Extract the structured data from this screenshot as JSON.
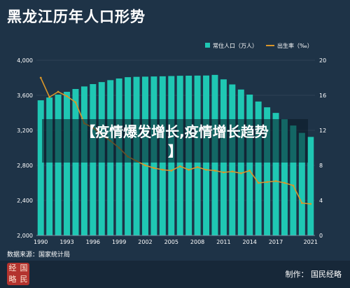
{
  "header": {
    "title": "黑龙江历年人口形势"
  },
  "overlay": {
    "headline_line1": "【疫情爆发增长,疫情增长趋势",
    "headline_line2": "】"
  },
  "footer": {
    "source": "数据来源：国家统计局",
    "credit": "制作：  国民经略",
    "logo_chars": [
      "经",
      "国",
      "略",
      "民"
    ]
  },
  "colors": {
    "background": "#1e3347",
    "bar": "#1fc7b3",
    "line": "#d9962a",
    "grid": "#3c5266"
  },
  "chart_data": {
    "type": "bar+line",
    "x": [
      1990,
      1991,
      1992,
      1993,
      1994,
      1995,
      1996,
      1997,
      1998,
      1999,
      2000,
      2001,
      2002,
      2003,
      2004,
      2005,
      2006,
      2007,
      2008,
      2009,
      2010,
      2011,
      2012,
      2013,
      2014,
      2015,
      2016,
      2017,
      2018,
      2019,
      2020,
      2021
    ],
    "x_ticks": [
      1990,
      1993,
      1996,
      1999,
      2002,
      2005,
      2008,
      2011,
      2014,
      2017,
      2021
    ],
    "series": [
      {
        "name": "常住人口（万人）",
        "type": "bar",
        "axis": "left",
        "values": [
          3543,
          3575,
          3608,
          3640,
          3672,
          3701,
          3728,
          3751,
          3773,
          3792,
          3807,
          3811,
          3813,
          3815,
          3817,
          3820,
          3823,
          3824,
          3825,
          3826,
          3833,
          3782,
          3724,
          3666,
          3608,
          3529,
          3463,
          3399,
          3327,
          3255,
          3171,
          3125
        ]
      },
      {
        "name": "出生率（‰）",
        "type": "line",
        "axis": "right",
        "values": [
          18.0,
          15.8,
          16.4,
          15.9,
          15.2,
          12.8,
          12.3,
          11.5,
          10.8,
          10.0,
          9.0,
          8.5,
          8.0,
          7.7,
          7.5,
          7.4,
          7.9,
          7.5,
          7.8,
          7.5,
          7.4,
          7.2,
          7.3,
          7.1,
          7.4,
          6.0,
          6.1,
          6.2,
          6.0,
          5.7,
          3.7,
          3.6
        ]
      }
    ],
    "y_left": {
      "ticks": [
        "2,000",
        "2,400",
        "2,800",
        "3,200",
        "3,600",
        "4,000"
      ],
      "range": [
        2000,
        4000
      ]
    },
    "y_right": {
      "ticks": [
        0,
        4,
        8,
        12,
        16,
        20
      ],
      "range": [
        0,
        20
      ]
    },
    "legend_position": "top-right",
    "grid": true
  }
}
